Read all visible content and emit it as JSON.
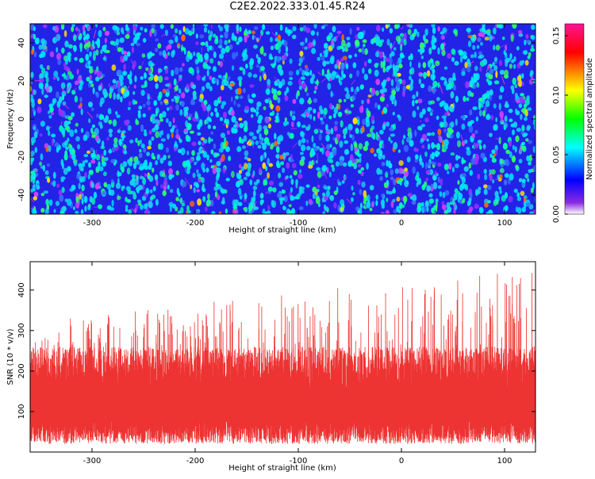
{
  "figure_title": "C2E2.2022.333.01.45.R24",
  "chart_data": [
    {
      "type": "heatmap",
      "title": "",
      "xlabel": "Height of straight line (km)",
      "ylabel": "Frequency (Hz)",
      "xlim": [
        -360,
        130
      ],
      "ylim": [
        -50,
        50
      ],
      "xticks": [
        -300,
        -200,
        -100,
        0,
        100
      ],
      "yticks": [
        -40,
        -20,
        0,
        20,
        40
      ],
      "grid": false,
      "colorbar": {
        "label": "Normalized spectral amplitude",
        "range": [
          0.0,
          0.16
        ],
        "ticks": [
          "0.00",
          "0.05",
          "0.10",
          "0.15"
        ],
        "colors": [
          "#ffffff",
          "#8a2be2",
          "#0000ff",
          "#00ffff",
          "#00ff00",
          "#ffff00",
          "#ff0000",
          "#ff1493"
        ]
      },
      "background_color": "#2323e8"
    },
    {
      "type": "line",
      "title": "",
      "xlabel": "Height of straight line (km)",
      "ylabel": "SNR (10 * v/v)",
      "xlim": [
        -360,
        130
      ],
      "ylim": [
        0,
        470
      ],
      "xticks": [
        -300,
        -200,
        -100,
        0,
        100
      ],
      "yticks": [
        100,
        200,
        300,
        400
      ],
      "grid": false,
      "series_color": "#ee3333"
    }
  ]
}
